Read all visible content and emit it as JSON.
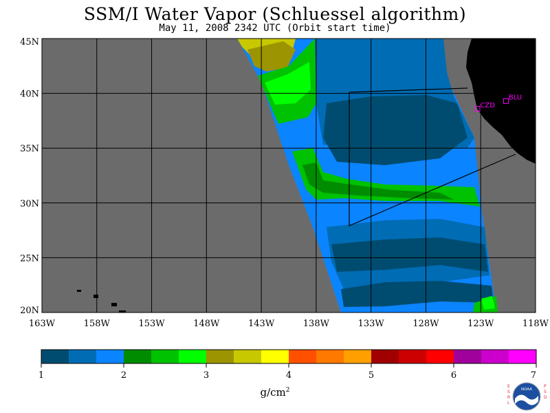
{
  "title": "SSM/I Water Vapor (Schluessel algorithm)",
  "subtitle": "May 11, 2008  2342 UTC  (Orbit start time)",
  "map": {
    "lat_labels": [
      "45N",
      "40N",
      "35N",
      "30N",
      "25N",
      "20N"
    ],
    "lat_values": [
      45,
      40,
      35,
      30,
      25,
      20
    ],
    "lon_labels": [
      "163W",
      "158W",
      "153W",
      "148W",
      "143W",
      "138W",
      "133W",
      "128W",
      "123W",
      "118W"
    ],
    "lon_values": [
      -163,
      -158,
      -153,
      -148,
      -143,
      -138,
      -133,
      -128,
      -123,
      -118
    ],
    "lon_range": [
      -163,
      -118
    ],
    "lat_range": [
      20,
      45
    ],
    "stations": [
      {
        "label": "CZD",
        "lon": -123.3,
        "lat": 38.6
      },
      {
        "label": "BLU",
        "lon": -120.7,
        "lat": 39.3
      }
    ],
    "colors": {
      "ocean_nodata": "#6b6b6b",
      "land": "#000000",
      "station": "#ff00ff",
      "grid": "#000000"
    }
  },
  "colorbar": {
    "tick_labels": [
      "1",
      "2",
      "3",
      "4",
      "5",
      "6",
      "7"
    ],
    "tick_values": [
      1,
      2,
      3,
      4,
      5,
      6,
      7
    ],
    "units": "g/cm",
    "units_sup": "2",
    "colors": [
      "#004c70",
      "#006cb4",
      "#0b84ff",
      "#008c00",
      "#00c200",
      "#00ff00",
      "#9c9400",
      "#c8c800",
      "#ffff00",
      "#ff5000",
      "#ff7800",
      "#ffa000",
      "#a00000",
      "#cc0000",
      "#ff0000",
      "#a0009c",
      "#cc00cc",
      "#ff00ff"
    ]
  },
  "logo": {
    "left_text": "ESRL",
    "center_text": "NOAA",
    "right_text": "PSD"
  }
}
